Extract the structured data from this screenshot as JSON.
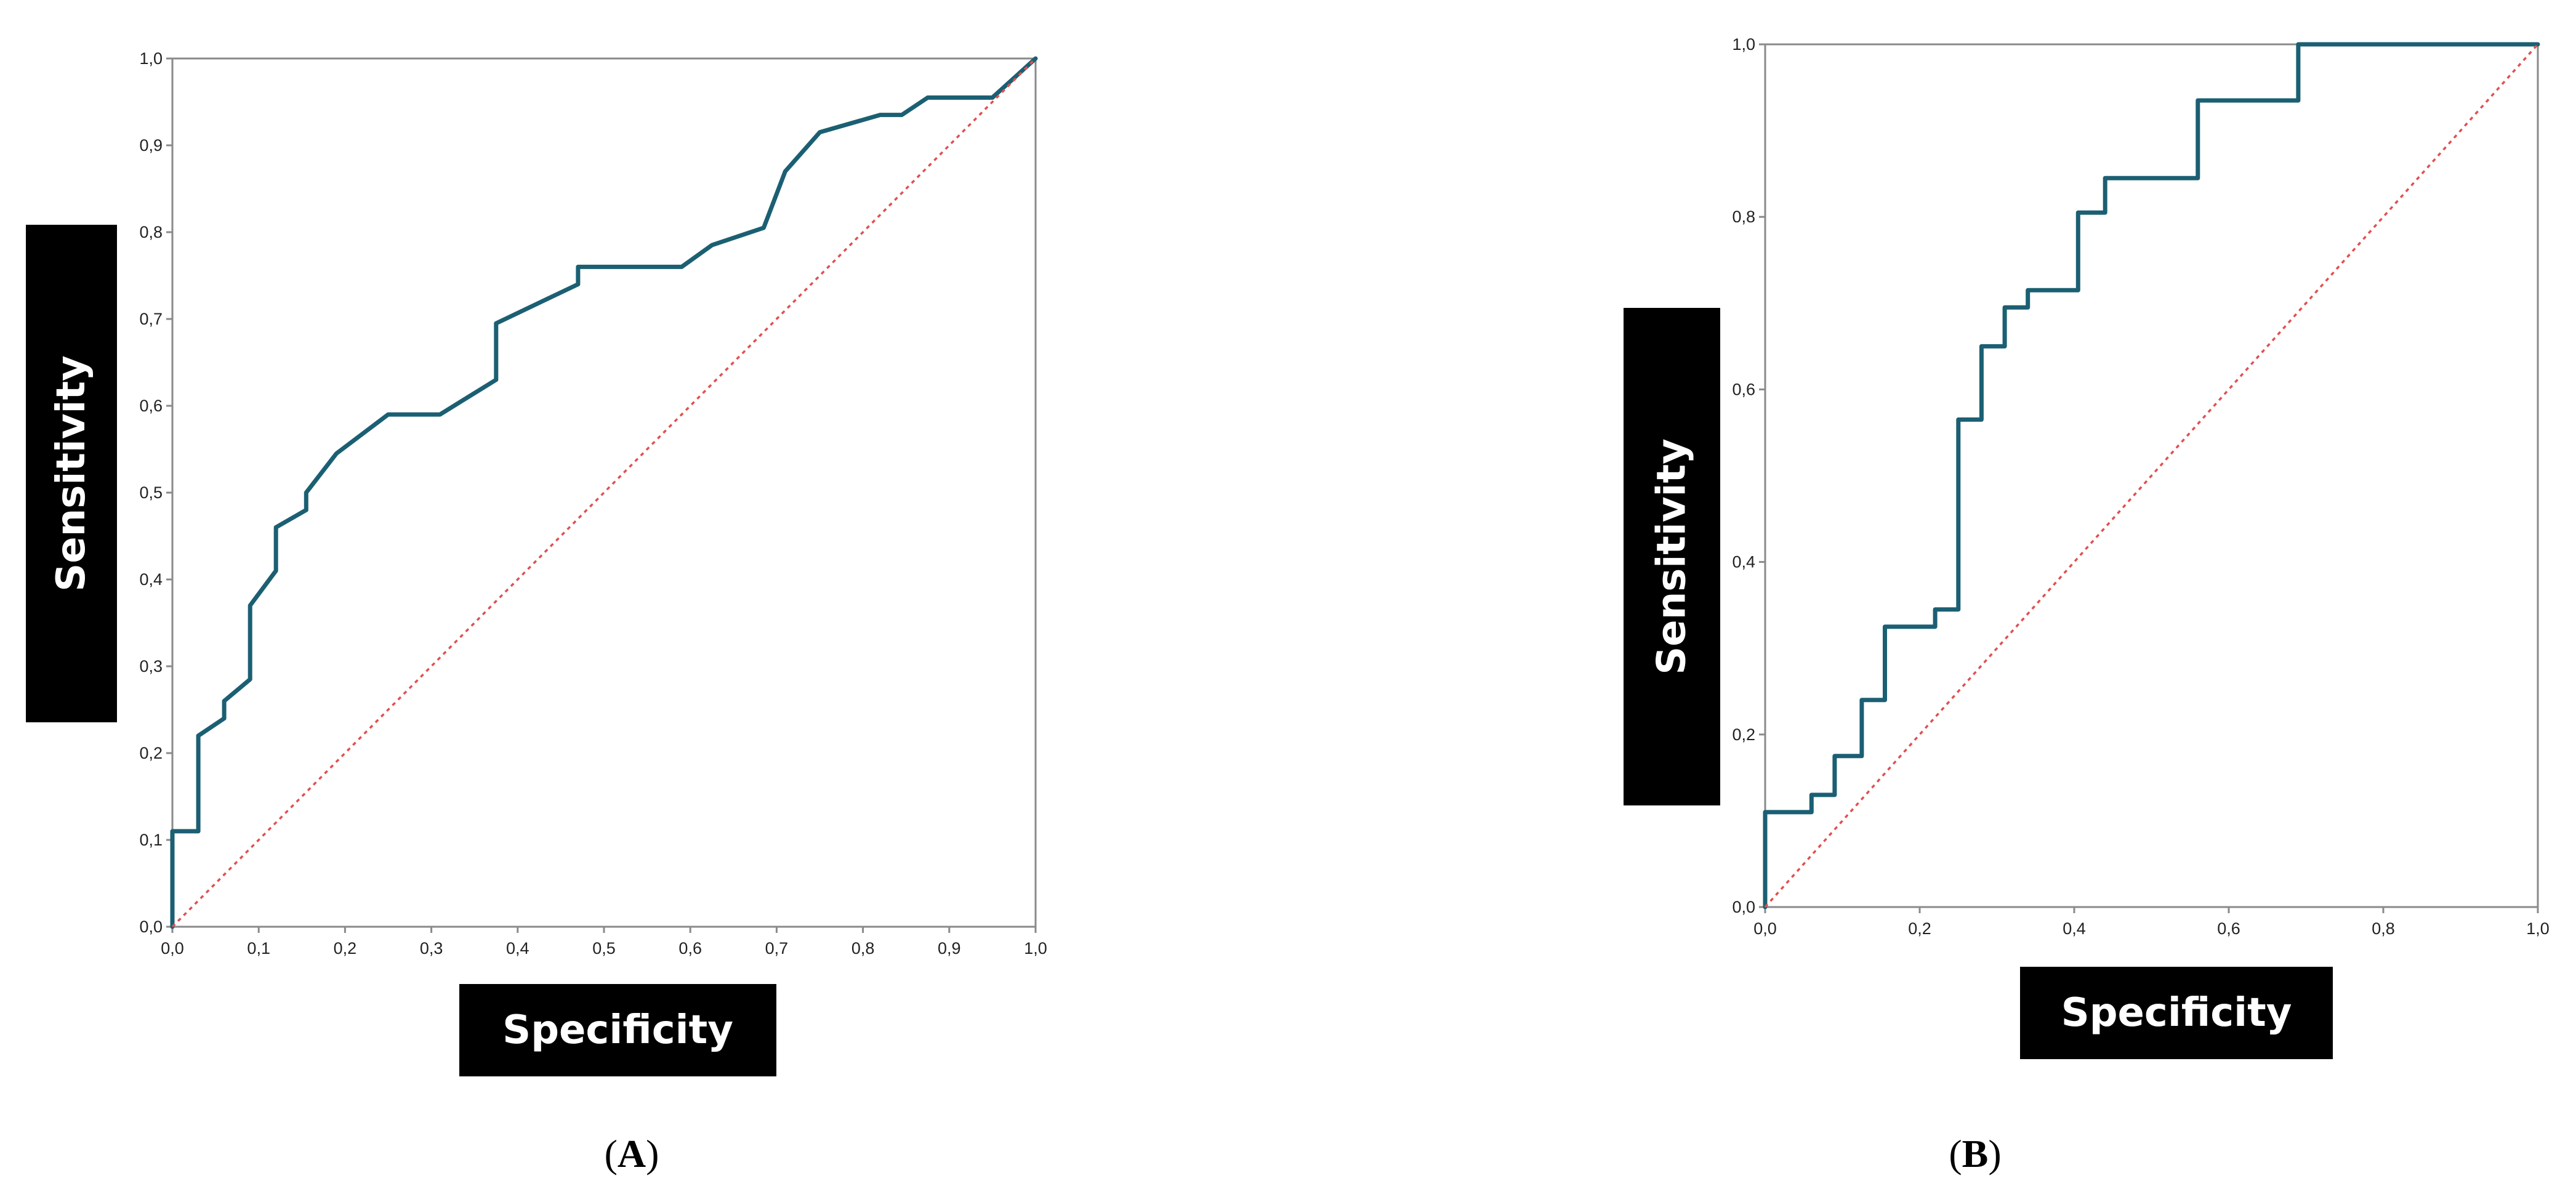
{
  "colors": {
    "roc": "#1b5f73",
    "reference": "#e05050",
    "label_box": "#000000",
    "label_text": "#ffffff"
  },
  "chart_data": [
    {
      "type": "line",
      "panel_label": "A",
      "xlabel": "Specificity",
      "ylabel": "Sensitivity",
      "xlim": [
        0,
        1
      ],
      "ylim": [
        0,
        1
      ],
      "x_ticks": [
        "0,0",
        "0,1",
        "0,2",
        "0,3",
        "0,4",
        "0,5",
        "0,6",
        "0,7",
        "0,8",
        "0,9",
        "1,0"
      ],
      "y_ticks": [
        "0,0",
        "0,1",
        "0,2",
        "0,3",
        "0,4",
        "0,5",
        "0,6",
        "0,7",
        "0,8",
        "0,9",
        "1,0"
      ],
      "grid": false,
      "series": [
        {
          "style": "step",
          "x": [
            0,
            0,
            0.03,
            0.03,
            0.06,
            0.06,
            0.09,
            0.09,
            0.12,
            0.12,
            0.155,
            0.155,
            0.19,
            0.25,
            0.31,
            0.375,
            0.375,
            0.47,
            0.47,
            0.59,
            0.625,
            0.685,
            0.71,
            0.75,
            0.82,
            0.845,
            0.875,
            0.95,
            1.0
          ],
          "y": [
            0,
            0.11,
            0.11,
            0.22,
            0.24,
            0.26,
            0.285,
            0.37,
            0.41,
            0.46,
            0.48,
            0.5,
            0.545,
            0.59,
            0.59,
            0.63,
            0.695,
            0.74,
            0.76,
            0.76,
            0.785,
            0.805,
            0.87,
            0.915,
            0.935,
            0.935,
            0.955,
            0.955,
            1.0
          ]
        },
        {
          "style": "dotted",
          "x": [
            0,
            1
          ],
          "y": [
            0,
            1
          ]
        }
      ]
    },
    {
      "type": "line",
      "panel_label": "B",
      "xlabel": "Specificity",
      "ylabel": "Sensitivity",
      "xlim": [
        0,
        1
      ],
      "ylim": [
        0,
        1
      ],
      "x_ticks": [
        "0,0",
        "0,2",
        "0,4",
        "0,6",
        "0,8",
        "1,0"
      ],
      "y_ticks": [
        "0,0",
        "0,2",
        "0,4",
        "0,6",
        "0,8",
        "1,0"
      ],
      "grid": false,
      "series": [
        {
          "style": "step",
          "x": [
            0,
            0,
            0.06,
            0.06,
            0.09,
            0.09,
            0.125,
            0.125,
            0.155,
            0.155,
            0.22,
            0.22,
            0.25,
            0.25,
            0.28,
            0.28,
            0.31,
            0.31,
            0.34,
            0.34,
            0.405,
            0.405,
            0.44,
            0.44,
            0.56,
            0.56,
            0.69,
            0.69,
            1.0
          ],
          "y": [
            0,
            0.11,
            0.11,
            0.13,
            0.13,
            0.175,
            0.175,
            0.24,
            0.24,
            0.325,
            0.325,
            0.345,
            0.345,
            0.565,
            0.565,
            0.65,
            0.65,
            0.695,
            0.695,
            0.715,
            0.715,
            0.805,
            0.805,
            0.845,
            0.845,
            0.935,
            0.935,
            1.0,
            1.0
          ]
        },
        {
          "style": "dotted",
          "x": [
            0,
            1
          ],
          "y": [
            0,
            1
          ]
        }
      ]
    }
  ]
}
